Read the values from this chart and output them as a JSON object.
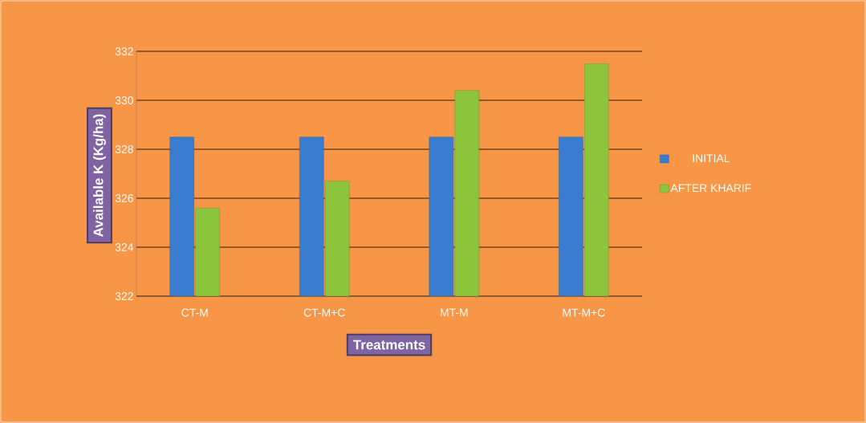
{
  "chart_data": {
    "type": "bar",
    "xlabel": "Treatments",
    "ylabel": "Available K (Kg/ha)",
    "categories": [
      "CT-M",
      "CT-M+C",
      "MT-M",
      "MT-M+C"
    ],
    "series": [
      {
        "name": "INITIAL",
        "color": "#3a7dd0",
        "values": [
          328.5,
          328.5,
          328.5,
          328.5
        ]
      },
      {
        "name": "AFTER KHARIF",
        "color": "#8cc43c",
        "values": [
          325.6,
          326.7,
          330.4,
          331.5
        ]
      }
    ],
    "ylim": [
      322,
      332
    ],
    "yticks": [
      322,
      324,
      326,
      328,
      330,
      332
    ],
    "grid": "y",
    "legend": "right"
  }
}
